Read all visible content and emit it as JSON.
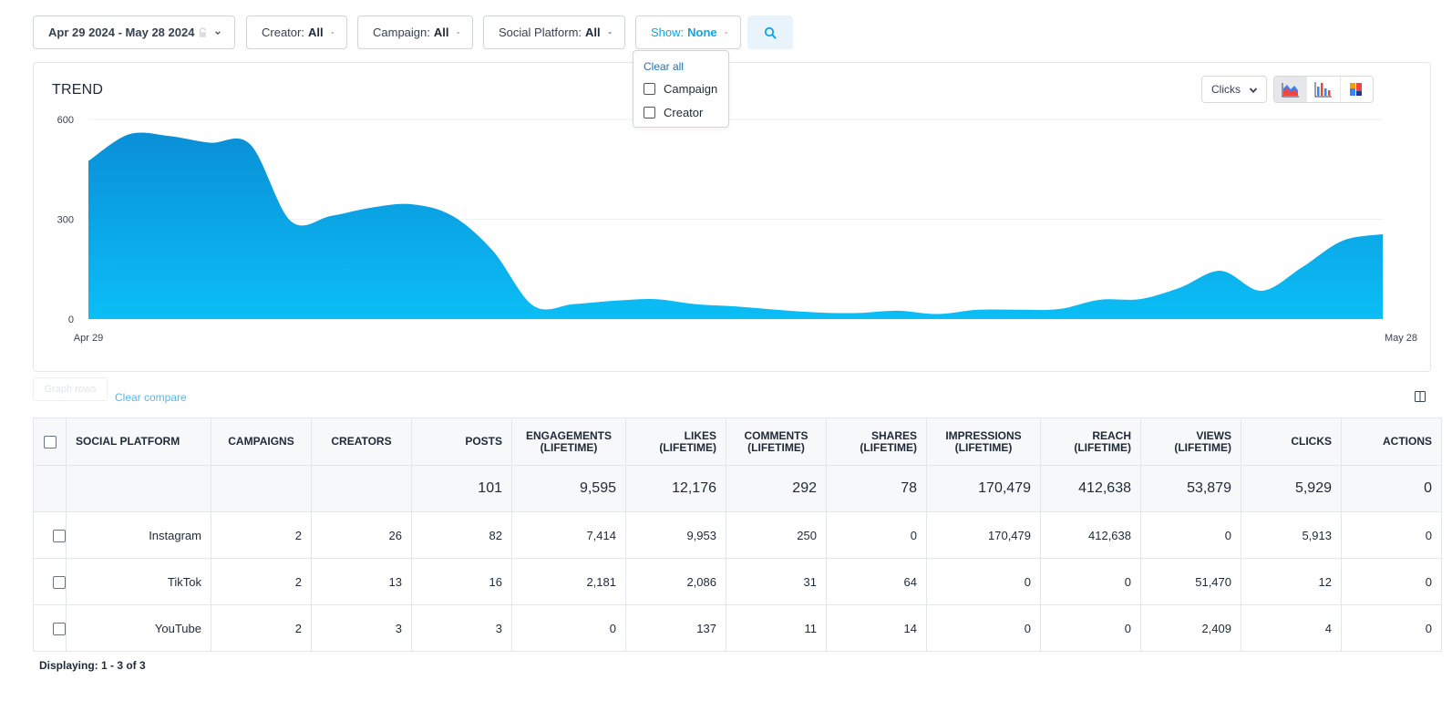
{
  "filters": {
    "date_range": "Apr 29 2024 - May 28 2024",
    "creator": {
      "label": "Creator:",
      "value": "All"
    },
    "campaign": {
      "label": "Campaign:",
      "value": "All"
    },
    "platform": {
      "label": "Social Platform:",
      "value": "All"
    },
    "show": {
      "label": "Show:",
      "value": "None"
    }
  },
  "show_dropdown": {
    "clear_all": "Clear all",
    "options": [
      "Campaign",
      "Creator"
    ]
  },
  "trend": {
    "title": "TREND",
    "metric": "Clicks",
    "accent": "#0bbef5"
  },
  "chart_data": {
    "type": "area",
    "x_start": "Apr 29",
    "x_end": "May 28",
    "x_ticks": [
      "Apr 29",
      "May 28"
    ],
    "y_ticks": [
      0,
      300,
      600
    ],
    "ylim": [
      0,
      600
    ],
    "grid": true,
    "series": [
      {
        "values": [
          475,
          555,
          550,
          530,
          525,
          295,
          310,
          335,
          345,
          310,
          205,
          40,
          45,
          55,
          60,
          45,
          38,
          28,
          20,
          18,
          25,
          15,
          28,
          28,
          30,
          58,
          60,
          95,
          145,
          85,
          155,
          235,
          255
        ]
      }
    ]
  },
  "compare": {
    "graph_rows": "Graph rows",
    "clear_compare": "Clear compare"
  },
  "table": {
    "headers": [
      "SOCIAL PLATFORM",
      "CAMPAIGNS",
      "CREATORS",
      "POSTS",
      "ENGAGEMENTS (LIFETIME)",
      "LIKES (LIFETIME)",
      "COMMENTS (LIFETIME)",
      "SHARES (LIFETIME)",
      "IMPRESSIONS (LIFETIME)",
      "REACH (LIFETIME)",
      "VIEWS (LIFETIME)",
      "CLICKS",
      "ACTIONS"
    ],
    "totals": [
      "",
      "",
      "",
      "101",
      "9,595",
      "12,176",
      "292",
      "78",
      "170,479",
      "412,638",
      "53,879",
      "5,929",
      "0"
    ],
    "rows": [
      [
        "Instagram",
        "2",
        "26",
        "82",
        "7,414",
        "9,953",
        "250",
        "0",
        "170,479",
        "412,638",
        "0",
        "5,913",
        "0"
      ],
      [
        "TikTok",
        "2",
        "13",
        "16",
        "2,181",
        "2,086",
        "31",
        "64",
        "0",
        "0",
        "51,470",
        "12",
        "0"
      ],
      [
        "YouTube",
        "2",
        "3",
        "3",
        "0",
        "137",
        "11",
        "14",
        "0",
        "0",
        "2,409",
        "4",
        "0"
      ]
    ]
  },
  "footer": {
    "displaying": "Displaying: 1 - 3 of 3"
  }
}
